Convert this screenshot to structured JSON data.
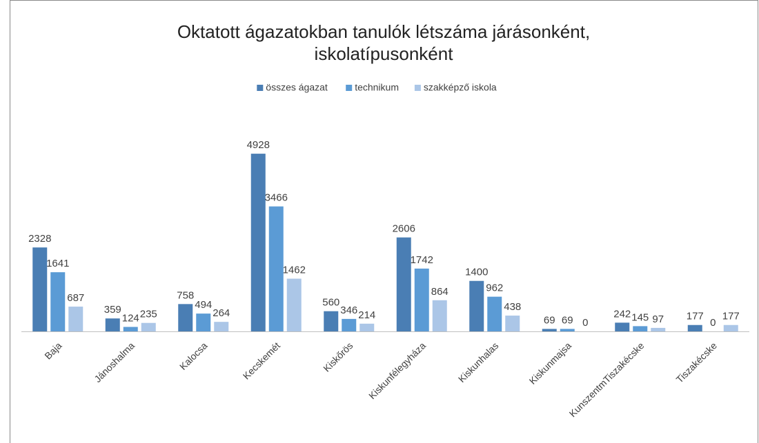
{
  "chart_data": {
    "type": "bar",
    "title": [
      "Oktatott ágazatokban tanulók létszáma járásonként,",
      "iskolatípusonként"
    ],
    "categories": [
      "Baja",
      "Jánoshalma",
      "Kalocsa",
      "Kecskemét",
      "Kiskőrös",
      "Kiskunfélegyháza",
      "Kiskunhalas",
      "Kiskunmajsa",
      "KunszentmTiszakécske",
      "Tiszakécske"
    ],
    "series": [
      {
        "name": "összes ágazat",
        "color": "#4a7eb4",
        "values": [
          2328,
          359,
          758,
          4928,
          560,
          2606,
          1400,
          69,
          242,
          177
        ]
      },
      {
        "name": "technikum",
        "color": "#5b9bd5",
        "values": [
          1641,
          124,
          494,
          3466,
          346,
          1742,
          962,
          69,
          145,
          0
        ]
      },
      {
        "name": "szakképző iskola",
        "color": "#abc6e7",
        "values": [
          687,
          235,
          264,
          1462,
          214,
          864,
          438,
          0,
          97,
          177
        ]
      }
    ],
    "ylim": [
      0,
      6000
    ],
    "legend": "top"
  }
}
